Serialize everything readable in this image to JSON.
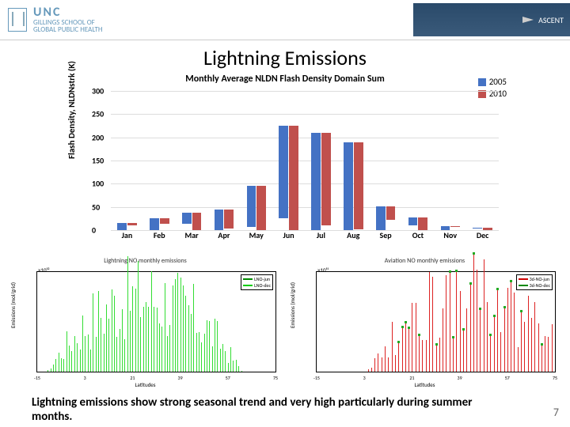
{
  "header": {
    "unc_top": "UNC",
    "unc_sub": "GILLINGS SCHOOL OF\nGLOBAL PUBLIC HEALTH",
    "right_logo": "ASCENT"
  },
  "title": "Lightning Emissions",
  "main_chart": {
    "type": "bar",
    "title": "Monthly Average NLDN Flash Density Domain Sum",
    "ylabel": "Flash Density, NLDNstrk (K)",
    "ylim": [
      0,
      300
    ],
    "ytick_step": 50,
    "categories": [
      "Jan",
      "Feb",
      "Mar",
      "Apr",
      "May",
      "Jun",
      "Jul",
      "Aug",
      "Sep",
      "Oct",
      "Nov",
      "Dec"
    ],
    "series": [
      {
        "name": "2005",
        "color": "#4472c4",
        "values": [
          15,
          25,
          25,
          45,
          88,
          200,
          210,
          190,
          52,
          18,
          8,
          2
        ]
      },
      {
        "name": "2010",
        "color": "#c0504d",
        "values": [
          5,
          12,
          38,
          42,
          95,
          225,
          200,
          188,
          30,
          28,
          2,
          5
        ]
      }
    ],
    "background_color": "#ffffff",
    "grid_color": "#dddddd",
    "tick_font_size": 10,
    "title_font_size": 12
  },
  "left_chart": {
    "type": "spike",
    "title": "Lightning NO monthly emissions",
    "ylabel": "Emissions (mol/grid)",
    "xlabel": "Latitudes",
    "xlim": [
      -15,
      75
    ],
    "ylim": [
      0,
      2000000000000.0
    ],
    "exponent": "×10¹²",
    "legend": [
      {
        "label": "LNO-jun",
        "color": "#008800"
      },
      {
        "label": "LNO-dec",
        "color": "#00cc00"
      }
    ],
    "fill_color": "#33dd33",
    "n_spikes": 90,
    "seed_profile": "dense_center"
  },
  "right_chart": {
    "type": "spike",
    "title": "Aviation NO monthly emissions",
    "ylabel": "Emissions (mol/grid)",
    "xlabel": "Latitudes",
    "xlim": [
      -15,
      75
    ],
    "ylim": [
      0,
      300000000000.0
    ],
    "exponent": "×10¹¹",
    "legend": [
      {
        "label": "3d-NO-jun",
        "color": "#cc0000"
      },
      {
        "label": "3d-NO-dec",
        "color": "#008800"
      }
    ],
    "primary_color": "#dd2222",
    "dot_color": "#22aa22",
    "n_spikes": 70,
    "seed_profile": "right_cluster"
  },
  "footer": "Lightning emissions show strong seasonal trend and very high particularly during summer months.",
  "page_number": "7",
  "colors": {
    "footer_text": "#000000",
    "title_text": "#000000",
    "header_bg": "#ffffff"
  }
}
